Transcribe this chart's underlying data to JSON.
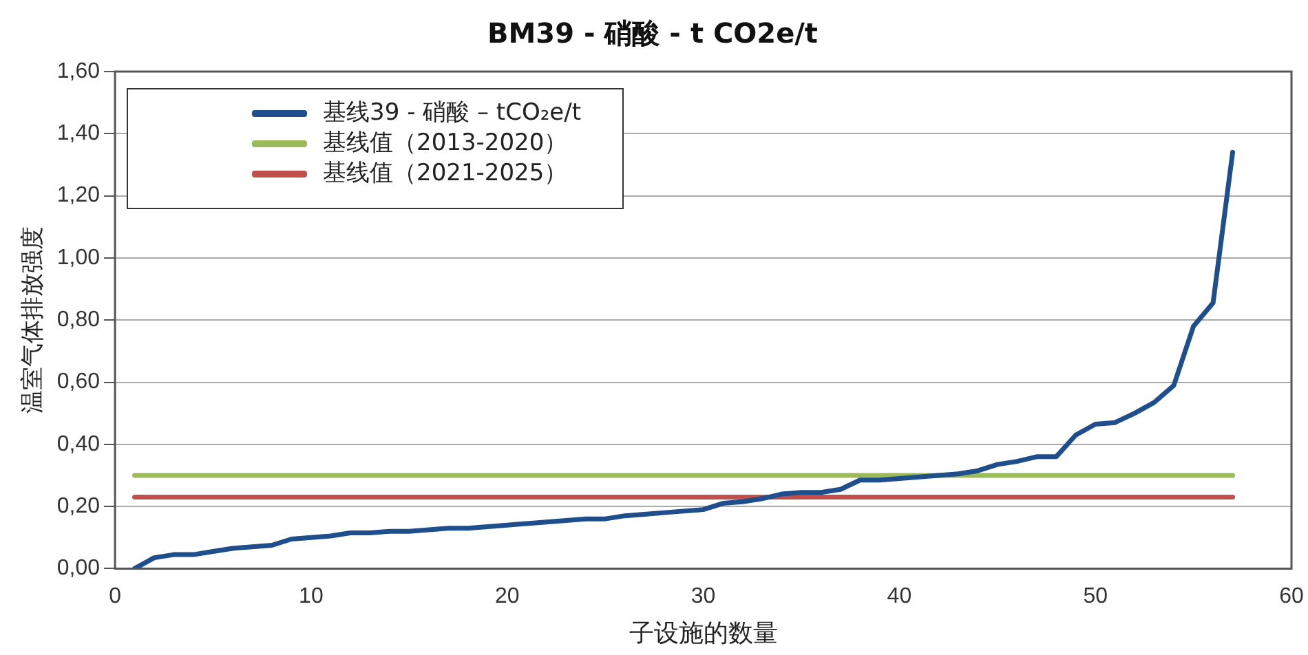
{
  "chart_data": {
    "type": "line",
    "title": "BM39 - 硝酸 - t CO2e/t",
    "xlabel": "子设施的数量",
    "ylabel": "温室气体排放强度",
    "x": [
      1,
      2,
      3,
      4,
      5,
      6,
      7,
      8,
      9,
      10,
      11,
      12,
      13,
      14,
      15,
      16,
      17,
      18,
      19,
      20,
      21,
      22,
      23,
      24,
      25,
      26,
      27,
      28,
      29,
      30,
      31,
      32,
      33,
      34,
      35,
      36,
      37,
      38,
      39,
      40,
      41,
      42,
      43,
      44,
      45,
      46,
      47,
      48,
      49,
      50,
      51,
      52,
      53,
      54,
      55,
      56,
      57
    ],
    "series": [
      {
        "name": "基线39 - 硝酸 – tCO₂e/t",
        "color": "#1f4e8c",
        "values": [
          0.0,
          0.035,
          0.045,
          0.045,
          0.055,
          0.065,
          0.07,
          0.075,
          0.095,
          0.1,
          0.105,
          0.115,
          0.115,
          0.12,
          0.12,
          0.125,
          0.13,
          0.13,
          0.135,
          0.14,
          0.145,
          0.15,
          0.155,
          0.16,
          0.16,
          0.17,
          0.175,
          0.18,
          0.185,
          0.19,
          0.21,
          0.215,
          0.225,
          0.24,
          0.245,
          0.245,
          0.255,
          0.285,
          0.285,
          0.29,
          0.295,
          0.3,
          0.305,
          0.315,
          0.335,
          0.345,
          0.36,
          0.36,
          0.43,
          0.465,
          0.47,
          0.5,
          0.535,
          0.59,
          0.78,
          0.855,
          1.34
        ]
      },
      {
        "name": "基线值（2013-2020）",
        "color": "#9bbb59",
        "values": [
          0.3,
          0.3,
          0.3,
          0.3,
          0.3,
          0.3,
          0.3,
          0.3,
          0.3,
          0.3,
          0.3,
          0.3,
          0.3,
          0.3,
          0.3,
          0.3,
          0.3,
          0.3,
          0.3,
          0.3,
          0.3,
          0.3,
          0.3,
          0.3,
          0.3,
          0.3,
          0.3,
          0.3,
          0.3,
          0.3,
          0.3,
          0.3,
          0.3,
          0.3,
          0.3,
          0.3,
          0.3,
          0.3,
          0.3,
          0.3,
          0.3,
          0.3,
          0.3,
          0.3,
          0.3,
          0.3,
          0.3,
          0.3,
          0.3,
          0.3,
          0.3,
          0.3,
          0.3,
          0.3,
          0.3,
          0.3,
          0.3
        ]
      },
      {
        "name": "基线值（2021-2025）",
        "color": "#c0504d",
        "values": [
          0.23,
          0.23,
          0.23,
          0.23,
          0.23,
          0.23,
          0.23,
          0.23,
          0.23,
          0.23,
          0.23,
          0.23,
          0.23,
          0.23,
          0.23,
          0.23,
          0.23,
          0.23,
          0.23,
          0.23,
          0.23,
          0.23,
          0.23,
          0.23,
          0.23,
          0.23,
          0.23,
          0.23,
          0.23,
          0.23,
          0.23,
          0.23,
          0.23,
          0.23,
          0.23,
          0.23,
          0.23,
          0.23,
          0.23,
          0.23,
          0.23,
          0.23,
          0.23,
          0.23,
          0.23,
          0.23,
          0.23,
          0.23,
          0.23,
          0.23,
          0.23,
          0.23,
          0.23,
          0.23,
          0.23,
          0.23,
          0.23
        ]
      }
    ],
    "xlim": [
      0,
      60
    ],
    "xticks": [
      0,
      10,
      20,
      30,
      40,
      50,
      60
    ],
    "ylim": [
      0,
      1.6
    ],
    "yticks": [
      {
        "value": 0,
        "label": "0,00"
      },
      {
        "value": 0.2,
        "label": "0,20"
      },
      {
        "value": 0.4,
        "label": "0,40"
      },
      {
        "value": 0.6,
        "label": "0,60"
      },
      {
        "value": 0.8,
        "label": "0,80"
      },
      {
        "value": 1.0,
        "label": "1,00"
      },
      {
        "value": 1.2,
        "label": "1,20"
      },
      {
        "value": 1.4,
        "label": "1,40"
      },
      {
        "value": 1.6,
        "label": "1,60"
      }
    ],
    "grid": "y",
    "legend": "top left",
    "marker": "none",
    "line_style": "solid"
  }
}
